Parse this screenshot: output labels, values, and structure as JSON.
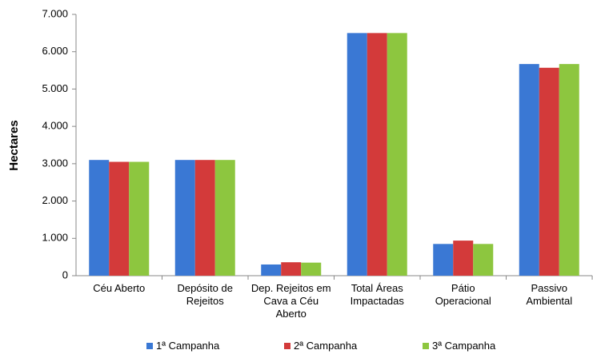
{
  "chart_data": {
    "type": "bar",
    "y_label": "Hectares",
    "categories": [
      "Céu Aberto",
      "Depósito de Rejeitos",
      "Dep. Rejeitos em Cava a Céu Aberto",
      "Total Áreas Impactadas",
      "Pátio Operacional",
      "Passivo Ambiental"
    ],
    "series": [
      {
        "name": "1ª Campanha",
        "color": "#3a78d4",
        "values": [
          3100,
          3100,
          300,
          6500,
          850,
          5670
        ]
      },
      {
        "name": "2ª Campanha",
        "color": "#d33a3a",
        "values": [
          3050,
          3100,
          360,
          6500,
          940,
          5570
        ]
      },
      {
        "name": "3ª Campanha",
        "color": "#8dc63f",
        "values": [
          3050,
          3100,
          350,
          6500,
          850,
          5670
        ]
      }
    ],
    "ylim": [
      0,
      7000
    ],
    "yticks": [
      0,
      {
        "value": 1000,
        "label": "1.000"
      },
      {
        "value": 2000,
        "label": "2.000"
      },
      {
        "value": 3000,
        "label": "3.000"
      },
      {
        "value": 4000,
        "label": "4.000"
      },
      {
        "value": 5000,
        "label": "5.000"
      },
      {
        "value": 6000,
        "label": "6.000"
      },
      {
        "value": 7000,
        "label": "7.000"
      }
    ],
    "legend": "bottom"
  }
}
